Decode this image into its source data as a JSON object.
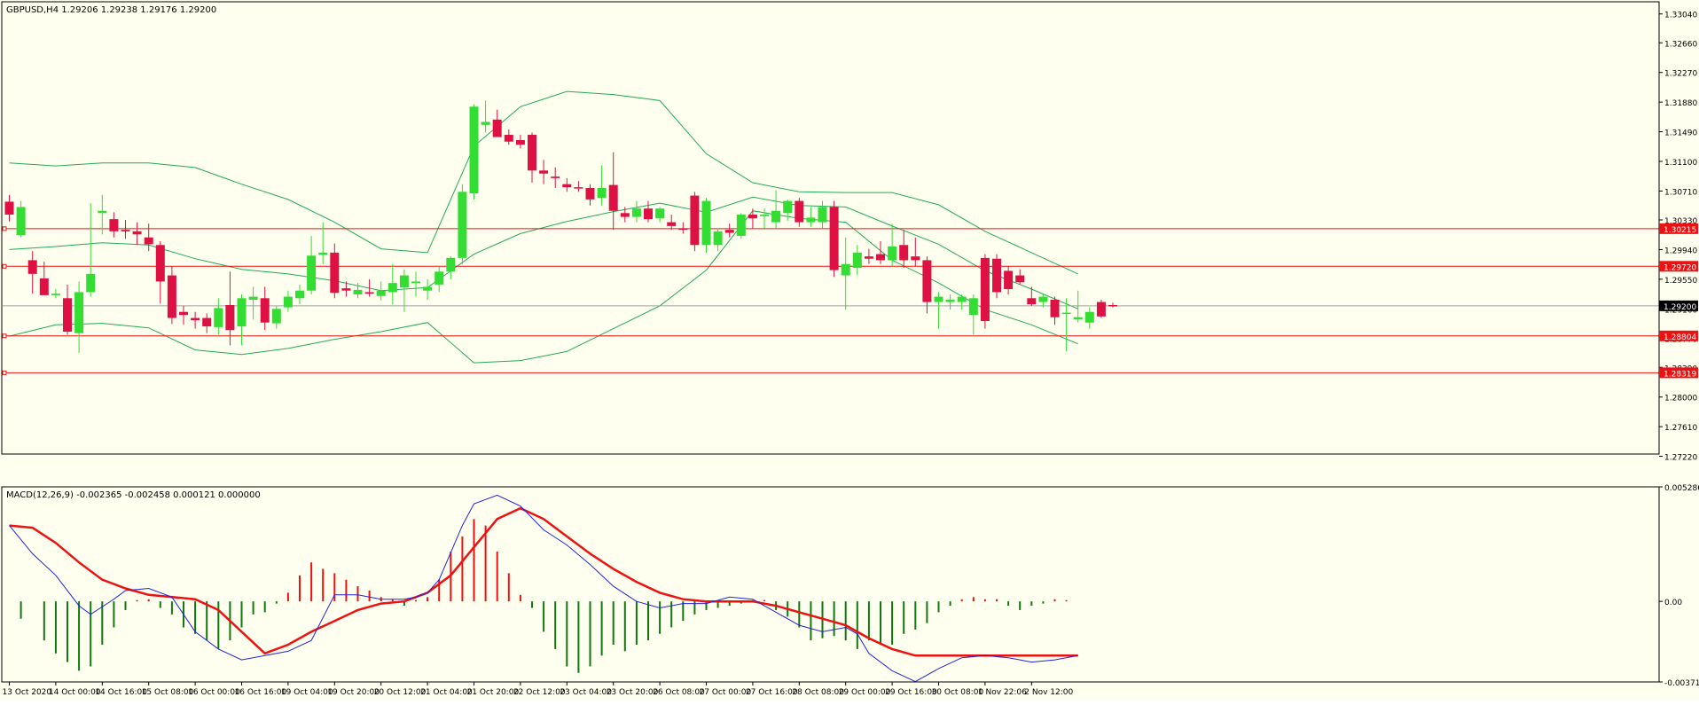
{
  "header": {
    "symbol_label": "GBPUSD,H4  1.29206 1.29238 1.29176 1.29200",
    "macd_label": "MACD(12,26,9) -0.002365 -0.002458 0.000121 0.000000"
  },
  "colors": {
    "background": "#FFFFF0",
    "bull": "#33DD33",
    "bear": "#DD1144",
    "band": "#22AA55",
    "level_line": "#EE1111",
    "price_line": "#A0A0A0",
    "macd_line": "#2222DD",
    "signal_line": "#EE1111",
    "hist_pos": "#EE1111",
    "hist_neg": "#117711"
  },
  "chart_data": [
    {
      "type": "candlestick",
      "symbol": "GBPUSD",
      "timeframe": "H4",
      "ylim": [
        1.2725,
        1.332
      ],
      "ytick_labels": [
        "1.33040",
        "1.32660",
        "1.32270",
        "1.31880",
        "1.31490",
        "1.31100",
        "1.30710",
        "1.30330",
        "1.29940",
        "1.29550",
        "1.29160",
        "1.28770",
        "1.28390",
        "1.28000",
        "1.27610",
        "1.27220"
      ],
      "xtick_labels": [
        "13 Oct 2020",
        "14 Oct 00:00",
        "14 Oct 16:00",
        "15 Oct 08:00",
        "16 Oct 00:00",
        "16 Oct 16:00",
        "19 Oct 04:00",
        "19 Oct 20:00",
        "20 Oct 12:00",
        "21 Oct 04:00",
        "21 Oct 20:00",
        "22 Oct 12:00",
        "23 Oct 04:00",
        "23 Oct 20:00",
        "26 Oct 08:00",
        "27 Oct 00:00",
        "27 Oct 16:00",
        "28 Oct 08:00",
        "29 Oct 00:00",
        "29 Oct 16:00",
        "30 Oct 08:00",
        "1 Nov 22:06",
        "2 Nov 12:00"
      ],
      "xtick_candle_index": [
        0,
        4,
        8,
        12,
        16,
        20,
        24,
        28,
        32,
        36,
        40,
        44,
        48,
        52,
        56,
        60,
        64,
        68,
        72,
        76,
        80,
        84,
        88
      ],
      "candles": [
        [
          1.3057,
          1.3066,
          1.3031,
          1.304
        ],
        [
          1.3013,
          1.3058,
          1.301,
          1.305
        ],
        [
          1.298,
          1.2992,
          1.2936,
          1.2962
        ],
        [
          1.2956,
          1.2978,
          1.2938,
          1.2934
        ],
        [
          1.2934,
          1.2942,
          1.293,
          1.2936
        ],
        [
          1.293,
          1.2948,
          1.2882,
          1.2886
        ],
        [
          1.2884,
          1.2952,
          1.2858,
          1.2938
        ],
        [
          1.2938,
          1.3055,
          1.2932,
          1.2962
        ],
        [
          1.3042,
          1.3066,
          1.3014,
          1.3045
        ],
        [
          1.3034,
          1.3043,
          1.301,
          1.3018
        ],
        [
          1.302,
          1.3033,
          1.3008,
          1.3018
        ],
        [
          1.3018,
          1.303,
          1.3,
          1.3014
        ],
        [
          1.301,
          1.3028,
          1.2992,
          1.3001
        ],
        [
          1.3,
          1.3005,
          1.2923,
          1.2952
        ],
        [
          1.296,
          1.2972,
          1.2896,
          1.2904
        ],
        [
          1.2912,
          1.292,
          1.2895,
          1.2908
        ],
        [
          1.2904,
          1.2912,
          1.289,
          1.2901
        ],
        [
          1.2904,
          1.291,
          1.2884,
          1.2893
        ],
        [
          1.2892,
          1.293,
          1.2882,
          1.2917
        ],
        [
          1.2921,
          1.2965,
          1.2868,
          1.2888
        ],
        [
          1.2893,
          1.2935,
          1.2868,
          1.293
        ],
        [
          1.2928,
          1.2945,
          1.2902,
          1.2932
        ],
        [
          1.293,
          1.2945,
          1.2888,
          1.2898
        ],
        [
          1.2897,
          1.292,
          1.289,
          1.2916
        ],
        [
          1.2918,
          1.294,
          1.2912,
          1.2932
        ],
        [
          1.293,
          1.2948,
          1.2922,
          1.294
        ],
        [
          1.294,
          1.3012,
          1.2935,
          1.2986
        ],
        [
          1.2987,
          1.303,
          1.2975,
          1.299
        ],
        [
          1.299,
          1.3002,
          1.293,
          1.2937
        ],
        [
          1.2943,
          1.2952,
          1.2932,
          1.294
        ],
        [
          1.2935,
          1.295,
          1.293,
          1.2941
        ],
        [
          1.2938,
          1.2955,
          1.2932,
          1.2936
        ],
        [
          1.2933,
          1.2952,
          1.2927,
          1.294
        ],
        [
          1.2938,
          1.2975,
          1.2922,
          1.295
        ],
        [
          1.2944,
          1.2968,
          1.2912,
          1.296
        ],
        [
          1.295,
          1.2965,
          1.2932,
          1.2952
        ],
        [
          1.294,
          1.2955,
          1.2928,
          1.2945
        ],
        [
          1.2948,
          1.2972,
          1.2938,
          1.2965
        ],
        [
          1.2965,
          1.2985,
          1.2955,
          1.2983
        ],
        [
          1.2983,
          1.308,
          1.2975,
          1.307
        ],
        [
          1.3068,
          1.3185,
          1.306,
          1.3182
        ],
        [
          1.3158,
          1.319,
          1.3148,
          1.3162
        ],
        [
          1.3165,
          1.3178,
          1.3145,
          1.3142
        ],
        [
          1.3145,
          1.3152,
          1.3132,
          1.3136
        ],
        [
          1.3138,
          1.3145,
          1.3127,
          1.3132
        ],
        [
          1.3145,
          1.3148,
          1.3082,
          1.3098
        ],
        [
          1.3098,
          1.3112,
          1.308,
          1.3094
        ],
        [
          1.309,
          1.3102,
          1.3075,
          1.3088
        ],
        [
          1.308,
          1.3088,
          1.307,
          1.3076
        ],
        [
          1.3076,
          1.3084,
          1.307,
          1.3075
        ],
        [
          1.3075,
          1.308,
          1.3052,
          1.306
        ],
        [
          1.3062,
          1.3105,
          1.3052,
          1.3075
        ],
        [
          1.3079,
          1.3122,
          1.302,
          1.3045
        ],
        [
          1.3042,
          1.305,
          1.303,
          1.3037
        ],
        [
          1.3037,
          1.3058,
          1.303,
          1.3048
        ],
        [
          1.3048,
          1.3058,
          1.303,
          1.3034
        ],
        [
          1.3035,
          1.305,
          1.303,
          1.3048
        ],
        [
          1.303,
          1.304,
          1.302,
          1.3025
        ],
        [
          1.3022,
          1.303,
          1.3015,
          1.302
        ],
        [
          1.3065,
          1.307,
          1.2992,
          1.3
        ],
        [
          1.3,
          1.3062,
          1.299,
          1.3058
        ],
        [
          1.3,
          1.3022,
          1.2992,
          1.3018
        ],
        [
          1.302,
          1.3028,
          1.301,
          1.3016
        ],
        [
          1.3012,
          1.3042,
          1.3008,
          1.304
        ],
        [
          1.304,
          1.3048,
          1.3022,
          1.3035
        ],
        [
          1.3038,
          1.3048,
          1.302,
          1.304
        ],
        [
          1.303,
          1.3072,
          1.3022,
          1.3045
        ],
        [
          1.3042,
          1.306,
          1.3032,
          1.3058
        ],
        [
          1.3058,
          1.3062,
          1.3024,
          1.303
        ],
        [
          1.303,
          1.305,
          1.3024,
          1.3036
        ],
        [
          1.303,
          1.3058,
          1.3022,
          1.305
        ],
        [
          1.305,
          1.3058,
          1.2958,
          1.2967
        ],
        [
          1.296,
          1.301,
          1.2915,
          1.2975
        ],
        [
          1.297,
          1.3,
          1.296,
          1.299
        ],
        [
          1.2985,
          1.2995,
          1.2975,
          1.2982
        ],
        [
          1.2988,
          1.3005,
          1.2975,
          1.298
        ],
        [
          1.298,
          1.3028,
          1.2972,
          1.2998
        ],
        [
          1.3,
          1.302,
          1.297,
          1.298
        ],
        [
          1.2985,
          1.301,
          1.2972,
          1.298
        ],
        [
          1.298,
          1.2985,
          1.291,
          1.2925
        ],
        [
          1.2925,
          1.2938,
          1.289,
          1.2932
        ],
        [
          1.2925,
          1.2935,
          1.2915,
          1.2928
        ],
        [
          1.2925,
          1.2935,
          1.2915,
          1.2932
        ],
        [
          1.2908,
          1.2935,
          1.2882,
          1.293
        ],
        [
          1.2983,
          1.2988,
          1.289,
          1.29
        ],
        [
          1.2982,
          1.2988,
          1.293,
          1.2938
        ],
        [
          1.2966,
          1.2972,
          1.2935,
          1.2942
        ],
        [
          1.296,
          1.2968,
          1.2948,
          1.2951
        ],
        [
          1.293,
          1.2945,
          1.292,
          1.2922
        ],
        [
          1.2925,
          1.2935,
          1.2918,
          1.2932
        ],
        [
          1.2928,
          1.2932,
          1.2895,
          1.2905
        ],
        [
          1.291,
          1.293,
          1.286,
          1.2911
        ],
        [
          1.2902,
          1.294,
          1.2898,
          1.2905
        ],
        [
          1.2898,
          1.2918,
          1.289,
          1.2912
        ],
        [
          1.2925,
          1.2928,
          1.2904,
          1.2906
        ],
        [
          1.2921,
          1.2924,
          1.2918,
          1.292
        ]
      ],
      "bollinger": {
        "upper_x": [
          0,
          4,
          8,
          12,
          16,
          20,
          24,
          28,
          32,
          36,
          40,
          44,
          48,
          52,
          56,
          60,
          64,
          68,
          72,
          76,
          80,
          84,
          88,
          92
        ],
        "upper": [
          1.3108,
          1.3104,
          1.3108,
          1.3108,
          1.3102,
          1.308,
          1.306,
          1.303,
          1.2995,
          1.299,
          1.313,
          1.3182,
          1.3202,
          1.3198,
          1.319,
          1.312,
          1.3082,
          1.307,
          1.3069,
          1.3069,
          1.3053,
          1.3018,
          1.299,
          1.2962
        ],
        "lower_x": [
          0,
          4,
          8,
          12,
          16,
          20,
          24,
          28,
          32,
          36,
          40,
          44,
          48,
          52,
          56,
          60,
          64,
          68,
          72,
          76,
          80,
          84,
          88,
          92
        ],
        "lower": [
          1.288,
          1.2895,
          1.2897,
          1.2891,
          1.2862,
          1.2856,
          1.2864,
          1.2876,
          1.2886,
          1.2898,
          1.2845,
          1.2848,
          1.286,
          1.289,
          1.292,
          1.2967,
          1.3045,
          1.3035,
          1.303,
          1.298,
          1.295,
          1.2915,
          1.2895,
          1.287
        ],
        "middle": [
          1.2994,
          1.2998,
          1.3003,
          1.3,
          1.2982,
          1.2968,
          1.2962,
          1.2953,
          1.294,
          1.2944,
          1.2988,
          1.3015,
          1.3031,
          1.3044,
          1.3055,
          1.3043,
          1.3063,
          1.3052,
          1.305,
          1.3025,
          1.3001,
          1.2966,
          1.2942,
          1.2916
        ]
      },
      "horizontal_levels": [
        {
          "value": 1.30215,
          "label": "1.30215"
        },
        {
          "value": 1.2972,
          "label": "1.29720"
        },
        {
          "value": 1.28804,
          "label": "1.28804"
        },
        {
          "value": 1.28319,
          "label": "1.28319"
        }
      ],
      "current_price": {
        "value": 1.292,
        "label": "1.29200"
      }
    },
    {
      "type": "macd",
      "params": "12,26,9",
      "ylim": [
        -0.003717,
        0.005286
      ],
      "ytick_labels": [
        "0.005286",
        "0.00",
        "-0.003717"
      ],
      "macd_x": [
        0,
        2,
        4,
        6,
        7,
        9,
        10,
        12,
        14,
        16,
        18,
        20,
        22,
        24,
        26,
        28,
        30,
        32,
        34,
        35,
        36,
        37,
        39,
        40,
        42,
        44,
        46,
        48,
        50,
        52,
        54,
        56,
        58,
        60,
        62,
        64,
        66,
        68,
        70,
        72,
        73,
        74,
        76,
        78,
        80,
        82,
        84,
        86,
        88,
        90,
        92
      ],
      "macd": [
        0.0035,
        0.0022,
        0.0012,
        -0.0002,
        -0.0006,
        0.0001,
        0.0005,
        0.0006,
        0.0002,
        -0.0014,
        -0.0022,
        -0.0027,
        -0.0025,
        -0.0023,
        -0.0018,
        0.0003,
        0.0003,
        0.0001,
        0.0001,
        0.0002,
        0.0004,
        0.001,
        0.0035,
        0.0045,
        0.0049,
        0.0044,
        0.0033,
        0.0026,
        0.0017,
        0.0007,
        0.0,
        -0.0003,
        -0.0001,
        -0.0001,
        0.0002,
        0.0001,
        -0.0005,
        -0.0011,
        -0.0014,
        -0.0012,
        -0.0015,
        -0.0024,
        -0.0032,
        -0.0037,
        -0.0031,
        -0.0026,
        -0.0025,
        -0.0026,
        -0.0028,
        -0.0027,
        -0.0025
      ],
      "signal_x": [
        0,
        2,
        4,
        6,
        8,
        10,
        12,
        14,
        16,
        18,
        20,
        22,
        24,
        26,
        28,
        30,
        32,
        34,
        36,
        38,
        40,
        42,
        44,
        46,
        48,
        50,
        52,
        54,
        56,
        58,
        60,
        62,
        64,
        66,
        68,
        70,
        72,
        74,
        76,
        78,
        80,
        82,
        84,
        86,
        88,
        90,
        92
      ],
      "signal": [
        0.0035,
        0.0034,
        0.0027,
        0.0018,
        0.001,
        0.0006,
        0.0003,
        0.0002,
        0.0001,
        -0.0004,
        -0.0014,
        -0.0024,
        -0.002,
        -0.0014,
        -0.0009,
        -0.0004,
        -0.0001,
        0.0,
        0.0004,
        0.0012,
        0.0025,
        0.0038,
        0.0043,
        0.0038,
        0.003,
        0.0022,
        0.0015,
        0.0009,
        0.0004,
        0.0001,
        0.0,
        0.0,
        0.0,
        -0.0002,
        -0.0005,
        -0.0008,
        -0.0011,
        -0.0017,
        -0.0022,
        -0.0025,
        -0.0025,
        -0.0025,
        -0.0025,
        -0.0025,
        -0.0025,
        -0.0025,
        -0.0025
      ],
      "histogram_x": [
        1,
        3,
        4,
        5,
        6,
        7,
        8,
        9,
        10,
        11,
        12,
        13,
        14,
        15,
        16,
        17,
        18,
        19,
        20,
        21,
        22,
        23,
        24,
        25,
        26,
        27,
        28,
        29,
        30,
        31,
        32,
        33,
        34,
        35,
        36,
        37,
        38,
        39,
        40,
        41,
        42,
        43,
        44,
        45,
        46,
        47,
        48,
        49,
        50,
        51,
        52,
        53,
        54,
        55,
        56,
        57,
        58,
        59,
        60,
        61,
        62,
        63,
        64,
        65,
        66,
        67,
        68,
        69,
        70,
        71,
        72,
        73,
        74,
        75,
        76,
        77,
        78,
        79,
        80,
        81,
        82,
        83,
        84,
        85,
        86,
        87,
        88,
        89,
        90,
        91
      ],
      "histogram": [
        -0.0008,
        -0.0018,
        -0.0024,
        -0.0028,
        -0.0032,
        -0.003,
        -0.002,
        -0.0012,
        -0.0004,
        0.0,
        0.0001,
        -0.0003,
        -0.0006,
        -0.0012,
        -0.0015,
        -0.0018,
        -0.0022,
        -0.0018,
        -0.0012,
        -0.0006,
        -0.0005,
        -0.0001,
        0.0004,
        0.0012,
        0.0018,
        0.0015,
        0.0013,
        0.001,
        0.0007,
        0.0005,
        0.0002,
        0.0001,
        -0.0002,
        0.0,
        0.0002,
        0.001,
        0.0023,
        0.003,
        0.0038,
        0.0035,
        0.0023,
        0.0013,
        0.0003,
        -0.0003,
        -0.0014,
        -0.0022,
        -0.003,
        -0.0033,
        -0.003,
        -0.0025,
        -0.002,
        -0.0023,
        -0.002,
        -0.0018,
        -0.0015,
        -0.0012,
        -0.0009,
        -0.0006,
        -0.0004,
        -0.0003,
        -0.0002,
        -0.0001,
        0.0,
        0.0,
        -0.0004,
        -0.0007,
        -0.0012,
        -0.0018,
        -0.0017,
        -0.0016,
        -0.0018,
        -0.0022,
        -0.0018,
        -0.002,
        -0.002,
        -0.0015,
        -0.0013,
        -0.001,
        -0.0005,
        -0.0002,
        0.0001,
        0.0002,
        0.0001,
        0.0001,
        -0.0002,
        -0.0004,
        -0.0002,
        -0.0001,
        0.0001,
        0.0
      ]
    }
  ]
}
